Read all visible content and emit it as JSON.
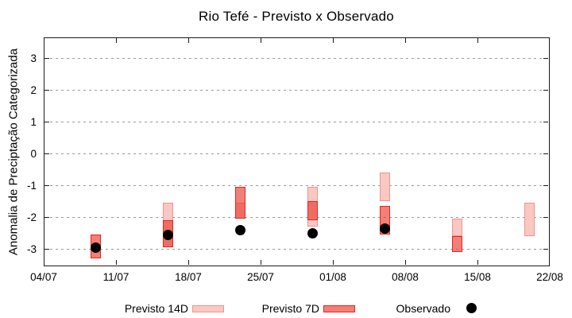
{
  "title": "Rio Tefé - Previsto x Observado",
  "chart_data": {
    "type": "range-bar",
    "title": "Rio Tefé - Previsto x Observado",
    "ylabel": "Anomalia de Preciptação Categorizada",
    "ylim": [
      -3.55,
      3.65
    ],
    "yticks": [
      3,
      2,
      1,
      0,
      -1,
      -2,
      -3
    ],
    "grid": {
      "horizontal_dashed": true,
      "color": "#9a9a9a"
    },
    "x_axis": {
      "tick_labels": [
        "04/07",
        "11/07",
        "18/07",
        "25/07",
        "01/08",
        "08/08",
        "15/08",
        "22/08"
      ],
      "tick_days": [
        0,
        7,
        14,
        21,
        28,
        35,
        42,
        49
      ],
      "total_days": 49
    },
    "series": {
      "previsto14": {
        "label": "Previsto 14D",
        "type": "range-box",
        "fill": "#f9c8c2",
        "border": "#ef9489",
        "points": [
          {
            "date": "16/07",
            "day": 12,
            "hi": -1.55,
            "lo": -2.95
          },
          {
            "date": "23/07",
            "day": 19,
            "hi": -1.55,
            "lo": -2.05
          },
          {
            "date": "30/07",
            "day": 26,
            "hi": -1.05,
            "lo": -2.3
          },
          {
            "date": "06/08",
            "day": 33,
            "hi": -0.6,
            "lo": -1.5
          },
          {
            "date": "13/08",
            "day": 40,
            "hi": -2.05,
            "lo": -2.6
          },
          {
            "date": "20/08",
            "day": 47,
            "hi": -1.55,
            "lo": -2.6
          }
        ]
      },
      "previsto7": {
        "label": "Previsto 7D",
        "type": "range-box",
        "fill": "rgba(235,60,50,0.66)",
        "border": "#e2261c",
        "points": [
          {
            "date": "09/07",
            "day": 5,
            "hi": -2.55,
            "lo": -3.3
          },
          {
            "date": "16/07",
            "day": 12,
            "hi": -2.1,
            "lo": -2.95
          },
          {
            "date": "23/07",
            "day": 19,
            "hi": -1.05,
            "lo": -2.05
          },
          {
            "date": "30/07",
            "day": 26,
            "hi": -1.5,
            "lo": -2.1
          },
          {
            "date": "06/08",
            "day": 33,
            "hi": -1.65,
            "lo": -2.55
          },
          {
            "date": "13/08",
            "day": 40,
            "hi": -2.6,
            "lo": -3.1
          }
        ]
      },
      "observado": {
        "label": "Observado",
        "type": "dot",
        "color": "#000000",
        "points": [
          {
            "date": "09/07",
            "day": 5,
            "value": -2.95
          },
          {
            "date": "16/07",
            "day": 12,
            "value": -2.55
          },
          {
            "date": "23/07",
            "day": 19,
            "value": -2.4
          },
          {
            "date": "30/07",
            "day": 26,
            "value": -2.5
          },
          {
            "date": "06/08",
            "day": 33,
            "value": -2.35
          }
        ]
      }
    },
    "legend_position": "bottom-center"
  },
  "legend": {
    "items": [
      {
        "label": "Previsto 14D",
        "swatch": "box-light"
      },
      {
        "label": "Previsto 7D",
        "swatch": "box-dark"
      },
      {
        "label": "Observado",
        "swatch": "dot"
      }
    ]
  }
}
